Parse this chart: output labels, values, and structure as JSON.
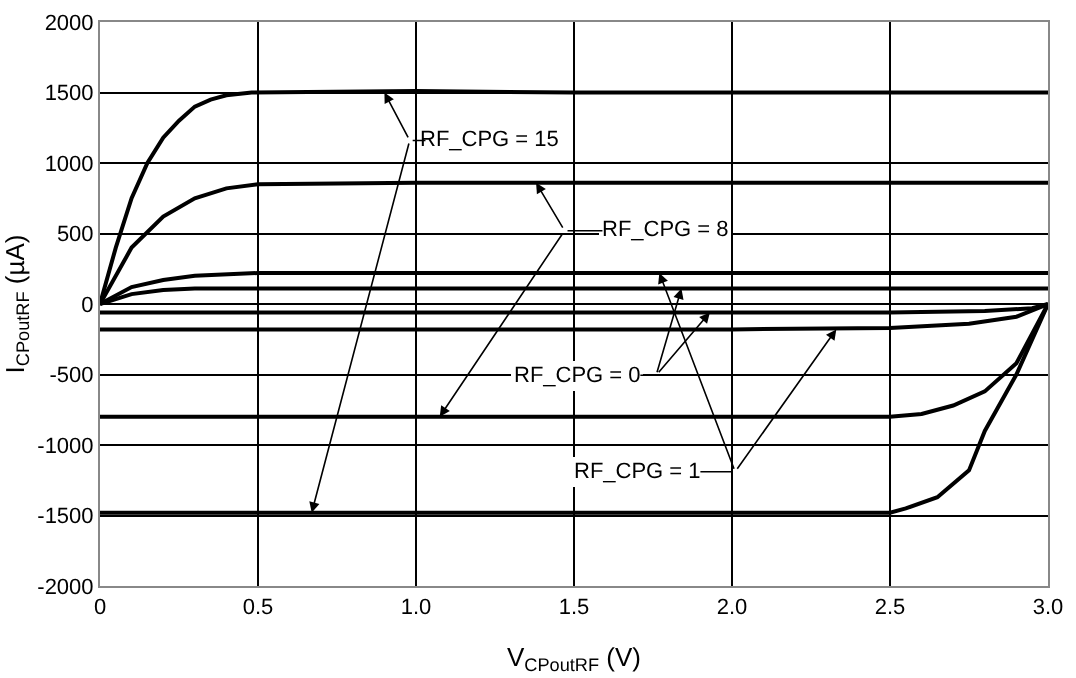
{
  "chart_data": {
    "type": "line",
    "xlabel": "V$_{CPoutRF}$ (V)",
    "ylabel": "I$_{CPoutRF}$ (µA)",
    "series": [
      {
        "color": "#000000",
        "x": [
          0,
          0.05,
          0.1,
          0.15,
          0.2,
          0.25,
          0.3,
          0.35,
          0.4,
          0.48,
          1.0,
          1.5,
          2.0,
          2.5,
          3.0
        ],
        "values": [
          0,
          400,
          750,
          1000,
          1180,
          1300,
          1400,
          1450,
          1480,
          1500,
          1510,
          1500,
          1500,
          1500,
          1500
        ]
      },
      {
        "color": "#000000",
        "x": [
          0,
          0.1,
          0.2,
          0.3,
          0.4,
          0.5,
          1.0,
          3.0
        ],
        "values": [
          0,
          400,
          620,
          750,
          820,
          850,
          860,
          860
        ]
      },
      {
        "color": "#000000",
        "x": [
          0,
          0.1,
          0.2,
          0.3,
          0.5,
          3.0
        ],
        "values": [
          0,
          120,
          170,
          200,
          220,
          220
        ]
      },
      {
        "color": "#000000",
        "x": [
          0,
          0.1,
          0.2,
          0.3,
          3.0
        ],
        "values": [
          0,
          70,
          100,
          110,
          110
        ]
      },
      {
        "color": "#000000",
        "x": [
          0,
          2.5,
          2.8,
          2.95,
          3.0
        ],
        "values": [
          -60,
          -60,
          -50,
          -30,
          0
        ]
      },
      {
        "color": "#000000",
        "x": [
          0,
          2.0,
          2.5,
          2.75,
          2.9,
          3.0
        ],
        "values": [
          -180,
          -180,
          -170,
          -140,
          -90,
          0
        ]
      },
      {
        "color": "#000000",
        "x": [
          0,
          2.5,
          2.6,
          2.7,
          2.8,
          2.9,
          3.0
        ],
        "values": [
          -800,
          -800,
          -780,
          -720,
          -620,
          -420,
          0
        ]
      },
      {
        "color": "#000000",
        "x": [
          0,
          2.5,
          2.55,
          2.65,
          2.75,
          2.8,
          2.9,
          3.0
        ],
        "values": [
          -1480,
          -1480,
          -1450,
          -1370,
          -1180,
          -900,
          -500,
          0
        ]
      }
    ],
    "annotations": [
      {
        "text": "RF_CPG = 15",
        "x": 0.9,
        "y": 1500
      },
      "RF_CPG = 8",
      {
        "text": "RF_CPG = 0",
        "x": 1.84,
        "y": 110
      },
      "RF_CPG = 1"
    ],
    "xlim": [
      0,
      3.0
    ],
    "xticks": [
      0,
      0.5,
      {
        "value": 1,
        "label": "1.0"
      },
      1.5,
      {
        "value": 2,
        "label": "2.0"
      },
      2.5,
      {
        "value": 3,
        "label": "3.0"
      }
    ],
    "ylim": [
      -2000,
      2000
    ],
    "yticks": [
      -2000,
      -1500,
      -1000,
      -500,
      0,
      500,
      1000,
      1500,
      2000
    ],
    "grid": true,
    "marker": "none",
    "line_style": "solid"
  }
}
